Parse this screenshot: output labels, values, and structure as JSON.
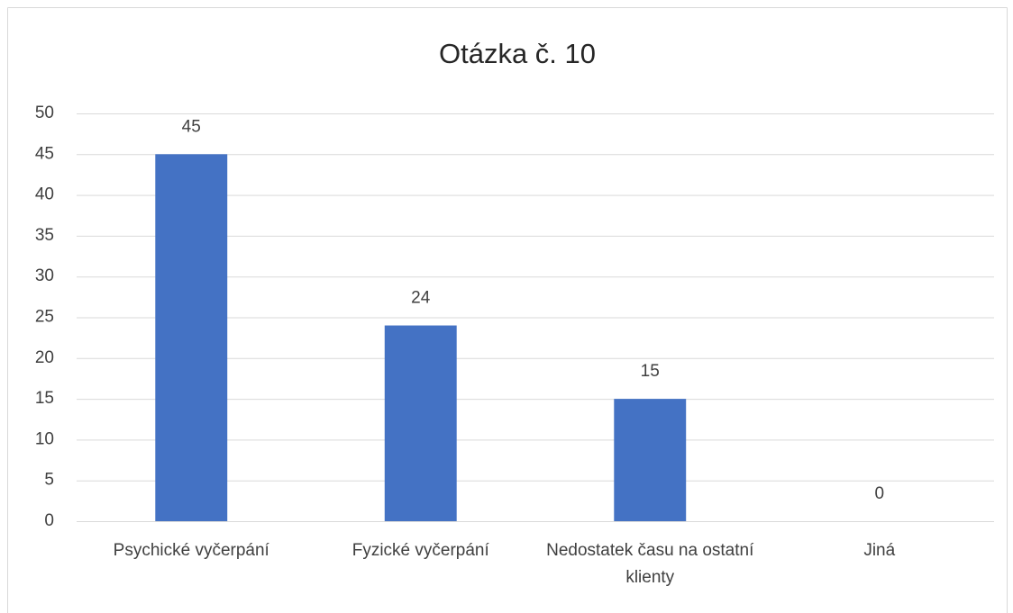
{
  "chart_data": {
    "type": "bar",
    "title": "Otázka č. 10",
    "categories": [
      "Psychické vyčerpání",
      "Fyzické vyčerpání",
      "Nedostatek času na ostatní klienty",
      "Jiná"
    ],
    "values": [
      45,
      24,
      15,
      0
    ],
    "color": "#4472c4",
    "ylim": [
      0,
      50
    ],
    "yticks": [
      0,
      5,
      10,
      15,
      20,
      25,
      30,
      35,
      40,
      45,
      50
    ],
    "grid": true
  }
}
